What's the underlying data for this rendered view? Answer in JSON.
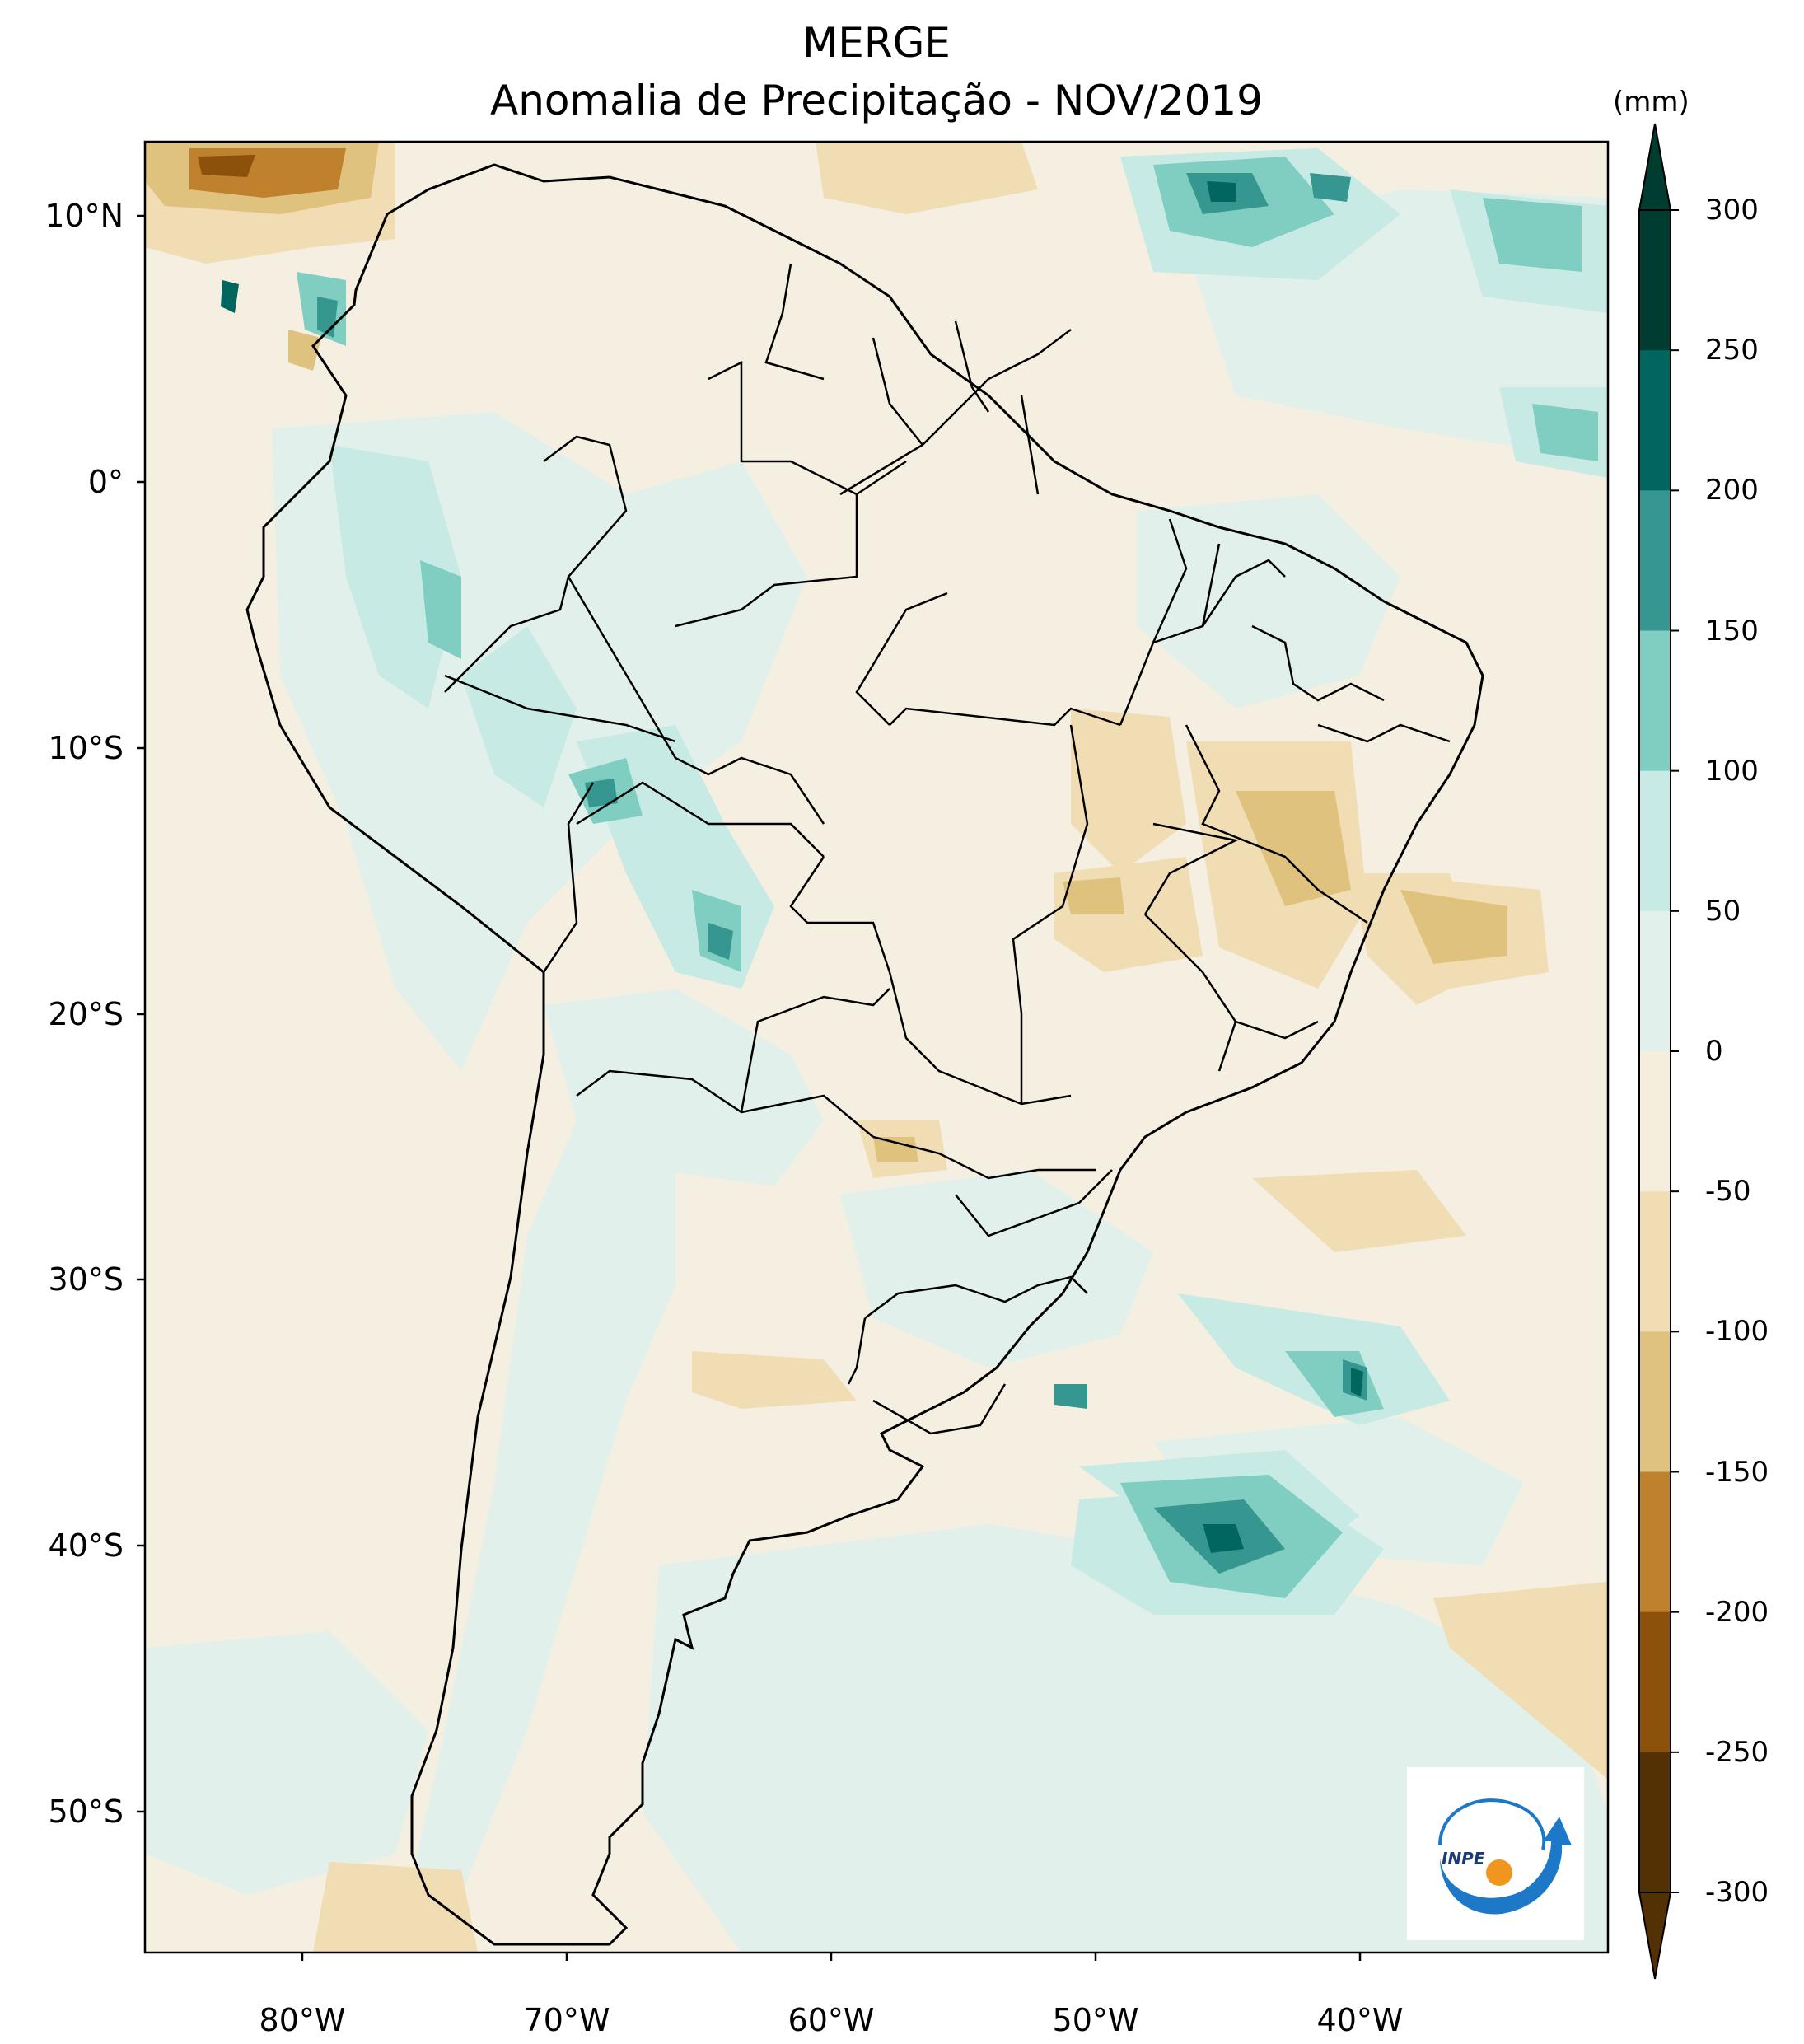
{
  "title": {
    "line1": "MERGE",
    "line2": "Anomalia de Precipitação - NOV/2019"
  },
  "axes": {
    "lat_labels": [
      "10°N",
      "0°",
      "10°S",
      "20°S",
      "30°S",
      "40°S",
      "50°S"
    ],
    "lon_labels": [
      "80°W",
      "70°W",
      "60°W",
      "50°W",
      "40°W"
    ]
  },
  "colorbar": {
    "units": "(mm)",
    "ticks": [
      "300",
      "250",
      "200",
      "150",
      "100",
      "50",
      "0",
      "-50",
      "-100",
      "-150",
      "-200",
      "-250",
      "-300"
    ],
    "colors": [
      "#003c30",
      "#01665e",
      "#35978f",
      "#80cdc1",
      "#c7eae5",
      "#e2f0ec",
      "#f5eedc",
      "#f1ddb4",
      "#dfc27d",
      "#bf812d",
      "#8c510a",
      "#543005"
    ]
  },
  "logo": {
    "text": "INPE"
  }
}
